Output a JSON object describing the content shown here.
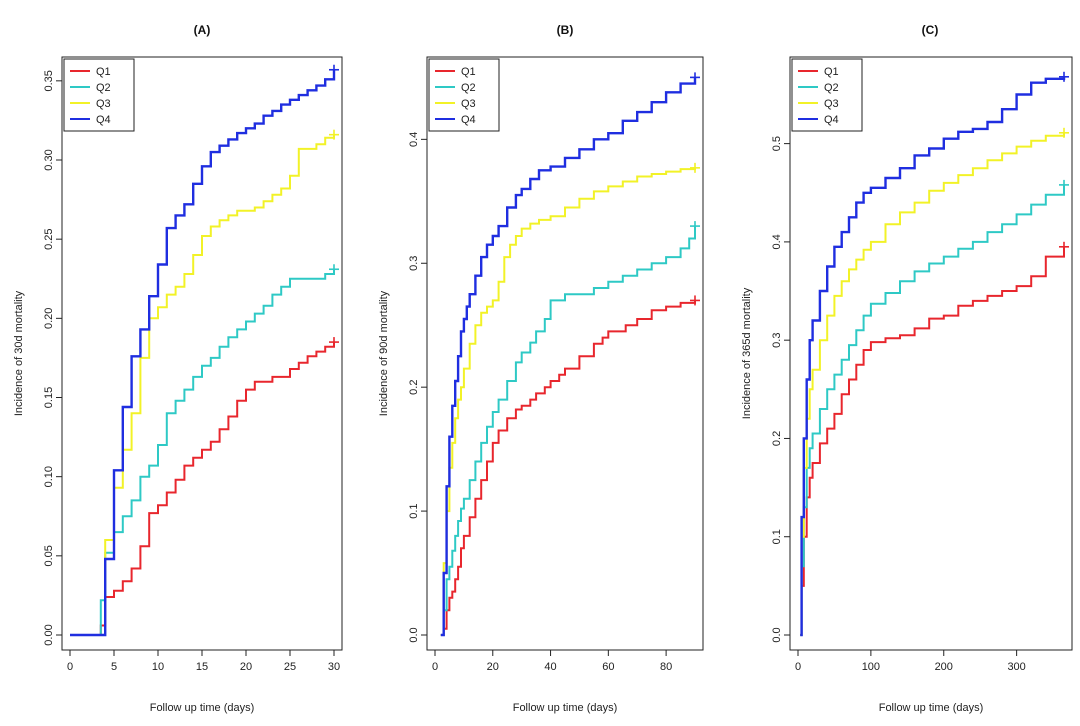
{
  "colors": {
    "Q1": "#e8262d",
    "Q2": "#2ec9c5",
    "Q3": "#f2f227",
    "Q4": "#1f2ee0"
  },
  "chart_data": [
    {
      "type": "line",
      "title": "(A)",
      "xlabel": "Follow up time (days)",
      "ylabel": "Incidence of 30d mortality",
      "xlim": [
        0,
        30
      ],
      "ylim": [
        0,
        0.36
      ],
      "xticks": [
        0,
        5,
        10,
        15,
        20,
        25,
        30
      ],
      "yticks": [
        0.0,
        0.05,
        0.1,
        0.15,
        0.2,
        0.25,
        0.3,
        0.35
      ],
      "ytick_labels": [
        "0.00",
        "0.05",
        "0.10",
        "0.15",
        "0.20",
        "0.25",
        "0.30",
        "0.35"
      ],
      "legend": [
        "Q1",
        "Q2",
        "Q3",
        "Q4"
      ],
      "series": [
        {
          "name": "Q1",
          "x": [
            0,
            3,
            3.5,
            4,
            5,
            6,
            7,
            8,
            9,
            10,
            11,
            12,
            13,
            14,
            15,
            16,
            17,
            18,
            19,
            20,
            21,
            23,
            25,
            26,
            27,
            28,
            29,
            30
          ],
          "y": [
            0,
            0,
            0.006,
            0.024,
            0.028,
            0.034,
            0.042,
            0.056,
            0.077,
            0.082,
            0.09,
            0.098,
            0.107,
            0.112,
            0.117,
            0.122,
            0.13,
            0.138,
            0.148,
            0.155,
            0.16,
            0.163,
            0.168,
            0.172,
            0.176,
            0.179,
            0.182,
            0.185
          ]
        },
        {
          "name": "Q2",
          "x": [
            0,
            3,
            3.5,
            4,
            5,
            6,
            7,
            8,
            9,
            10,
            11,
            12,
            13,
            14,
            15,
            16,
            17,
            18,
            19,
            20,
            21,
            22,
            23,
            24,
            25,
            27,
            29,
            30
          ],
          "y": [
            0,
            0,
            0.022,
            0.052,
            0.065,
            0.075,
            0.085,
            0.1,
            0.107,
            0.12,
            0.14,
            0.148,
            0.155,
            0.163,
            0.17,
            0.175,
            0.182,
            0.188,
            0.193,
            0.198,
            0.203,
            0.208,
            0.215,
            0.22,
            0.225,
            0.225,
            0.228,
            0.231
          ]
        },
        {
          "name": "Q3",
          "x": [
            0,
            3,
            4,
            5,
            6,
            7,
            8,
            9,
            10,
            11,
            12,
            13,
            14,
            15,
            16,
            17,
            18,
            19,
            20,
            21,
            22,
            23,
            24,
            25,
            26,
            27,
            28,
            29,
            30
          ],
          "y": [
            0,
            0,
            0.06,
            0.093,
            0.117,
            0.14,
            0.175,
            0.2,
            0.207,
            0.215,
            0.22,
            0.228,
            0.24,
            0.252,
            0.258,
            0.262,
            0.265,
            0.268,
            0.268,
            0.27,
            0.274,
            0.278,
            0.282,
            0.29,
            0.307,
            0.307,
            0.31,
            0.314,
            0.316
          ]
        },
        {
          "name": "Q4",
          "x": [
            0,
            3,
            4,
            5,
            6,
            7,
            8,
            9,
            10,
            11,
            12,
            13,
            14,
            15,
            16,
            17,
            18,
            19,
            20,
            21,
            22,
            23,
            24,
            25,
            26,
            27,
            28,
            29,
            30
          ],
          "y": [
            0,
            0,
            0.048,
            0.104,
            0.144,
            0.176,
            0.193,
            0.214,
            0.234,
            0.257,
            0.265,
            0.272,
            0.285,
            0.296,
            0.305,
            0.309,
            0.313,
            0.317,
            0.32,
            0.323,
            0.328,
            0.331,
            0.335,
            0.338,
            0.341,
            0.344,
            0.347,
            0.351,
            0.357
          ]
        }
      ]
    },
    {
      "type": "line",
      "title": "(B)",
      "xlabel": "Follow up time (days)",
      "ylabel": "Incidence of 90d mortality",
      "xlim": [
        0,
        90
      ],
      "ylim": [
        0,
        0.46
      ],
      "xticks": [
        0,
        20,
        40,
        60,
        80
      ],
      "yticks": [
        0.0,
        0.1,
        0.2,
        0.3,
        0.4
      ],
      "ytick_labels": [
        "0.0",
        "0.1",
        "0.2",
        "0.3",
        "0.4"
      ],
      "legend": [
        "Q1",
        "Q2",
        "Q3",
        "Q4"
      ],
      "series": [
        {
          "name": "Q1",
          "x": [
            2,
            3,
            4,
            5,
            6,
            7,
            8,
            9,
            10,
            12,
            14,
            16,
            18,
            20,
            22,
            25,
            28,
            30,
            33,
            35,
            38,
            40,
            43,
            45,
            50,
            55,
            58,
            60,
            63,
            66,
            70,
            75,
            80,
            85,
            90
          ],
          "y": [
            0,
            0.005,
            0.02,
            0.03,
            0.035,
            0.045,
            0.055,
            0.07,
            0.08,
            0.095,
            0.11,
            0.125,
            0.14,
            0.155,
            0.165,
            0.175,
            0.182,
            0.185,
            0.19,
            0.195,
            0.2,
            0.205,
            0.21,
            0.215,
            0.225,
            0.235,
            0.24,
            0.245,
            0.245,
            0.25,
            0.255,
            0.262,
            0.265,
            0.268,
            0.27
          ]
        },
        {
          "name": "Q2",
          "x": [
            2,
            3,
            4,
            5,
            6,
            7,
            8,
            9,
            10,
            12,
            14,
            16,
            18,
            20,
            22,
            25,
            28,
            30,
            33,
            35,
            38,
            40,
            45,
            50,
            55,
            60,
            65,
            70,
            75,
            80,
            85,
            88,
            90
          ],
          "y": [
            0,
            0.02,
            0.045,
            0.055,
            0.068,
            0.08,
            0.092,
            0.102,
            0.11,
            0.125,
            0.14,
            0.155,
            0.168,
            0.18,
            0.19,
            0.205,
            0.22,
            0.228,
            0.236,
            0.245,
            0.255,
            0.27,
            0.275,
            0.275,
            0.28,
            0.285,
            0.29,
            0.295,
            0.3,
            0.305,
            0.312,
            0.32,
            0.33
          ]
        },
        {
          "name": "Q3",
          "x": [
            2,
            3,
            4,
            5,
            6,
            7,
            8,
            9,
            10,
            12,
            14,
            16,
            18,
            20,
            22,
            24,
            26,
            28,
            30,
            33,
            36,
            40,
            45,
            50,
            55,
            60,
            65,
            70,
            75,
            80,
            85,
            90
          ],
          "y": [
            0,
            0.058,
            0.1,
            0.135,
            0.155,
            0.175,
            0.19,
            0.2,
            0.215,
            0.235,
            0.25,
            0.26,
            0.265,
            0.27,
            0.285,
            0.305,
            0.315,
            0.322,
            0.328,
            0.332,
            0.335,
            0.338,
            0.345,
            0.352,
            0.358,
            0.362,
            0.366,
            0.37,
            0.372,
            0.374,
            0.376,
            0.377
          ]
        },
        {
          "name": "Q4",
          "x": [
            2,
            3,
            4,
            5,
            6,
            7,
            8,
            9,
            10,
            11,
            12,
            14,
            16,
            18,
            20,
            22,
            25,
            28,
            30,
            33,
            36,
            40,
            45,
            50,
            55,
            60,
            65,
            70,
            75,
            80,
            85,
            90
          ],
          "y": [
            0,
            0.05,
            0.12,
            0.16,
            0.185,
            0.205,
            0.225,
            0.245,
            0.255,
            0.265,
            0.275,
            0.29,
            0.305,
            0.315,
            0.322,
            0.33,
            0.345,
            0.355,
            0.36,
            0.368,
            0.375,
            0.378,
            0.385,
            0.392,
            0.4,
            0.405,
            0.415,
            0.422,
            0.43,
            0.438,
            0.445,
            0.45
          ]
        }
      ]
    },
    {
      "type": "line",
      "title": "(C)",
      "xlabel": "Follow up time (days)",
      "ylabel": "Incidence of 365d mortality",
      "xlim": [
        0,
        365
      ],
      "ylim": [
        0,
        0.58
      ],
      "xticks": [
        0,
        100,
        200,
        300
      ],
      "yticks": [
        0.0,
        0.1,
        0.2,
        0.3,
        0.4,
        0.5
      ],
      "ytick_labels": [
        "0.0",
        "0.1",
        "0.2",
        "0.3",
        "0.4",
        "0.5"
      ],
      "legend": [
        "Q1",
        "Q2",
        "Q3",
        "Q4"
      ],
      "series": [
        {
          "name": "Q1",
          "x": [
            3,
            5,
            8,
            12,
            16,
            20,
            30,
            40,
            50,
            60,
            70,
            80,
            90,
            100,
            120,
            140,
            160,
            180,
            200,
            220,
            240,
            260,
            280,
            300,
            320,
            340,
            365
          ],
          "y": [
            0,
            0.05,
            0.1,
            0.14,
            0.16,
            0.175,
            0.195,
            0.21,
            0.225,
            0.245,
            0.26,
            0.275,
            0.29,
            0.298,
            0.302,
            0.305,
            0.312,
            0.322,
            0.325,
            0.335,
            0.34,
            0.345,
            0.35,
            0.355,
            0.365,
            0.385,
            0.395
          ]
        },
        {
          "name": "Q2",
          "x": [
            3,
            5,
            8,
            12,
            16,
            20,
            30,
            40,
            50,
            60,
            70,
            80,
            90,
            100,
            120,
            140,
            160,
            180,
            200,
            220,
            240,
            260,
            280,
            300,
            320,
            340,
            365
          ],
          "y": [
            0,
            0.07,
            0.13,
            0.17,
            0.19,
            0.205,
            0.23,
            0.25,
            0.265,
            0.28,
            0.295,
            0.31,
            0.325,
            0.337,
            0.348,
            0.36,
            0.37,
            0.378,
            0.385,
            0.393,
            0.4,
            0.41,
            0.418,
            0.428,
            0.438,
            0.448,
            0.458
          ]
        },
        {
          "name": "Q3",
          "x": [
            3,
            5,
            8,
            12,
            16,
            20,
            30,
            40,
            50,
            60,
            70,
            80,
            90,
            100,
            120,
            140,
            160,
            180,
            200,
            220,
            240,
            260,
            280,
            300,
            320,
            340,
            365
          ],
          "y": [
            0,
            0.1,
            0.17,
            0.22,
            0.25,
            0.27,
            0.3,
            0.325,
            0.345,
            0.36,
            0.372,
            0.382,
            0.392,
            0.4,
            0.418,
            0.43,
            0.44,
            0.452,
            0.46,
            0.468,
            0.475,
            0.483,
            0.49,
            0.497,
            0.503,
            0.508,
            0.511
          ]
        },
        {
          "name": "Q4",
          "x": [
            3,
            5,
            8,
            12,
            16,
            20,
            30,
            40,
            50,
            60,
            70,
            80,
            90,
            100,
            120,
            140,
            160,
            180,
            200,
            220,
            240,
            260,
            280,
            300,
            320,
            340,
            365
          ],
          "y": [
            0,
            0.12,
            0.2,
            0.26,
            0.3,
            0.32,
            0.35,
            0.375,
            0.395,
            0.41,
            0.425,
            0.44,
            0.45,
            0.455,
            0.465,
            0.475,
            0.488,
            0.495,
            0.505,
            0.512,
            0.515,
            0.522,
            0.535,
            0.55,
            0.562,
            0.566,
            0.568
          ]
        }
      ]
    }
  ]
}
